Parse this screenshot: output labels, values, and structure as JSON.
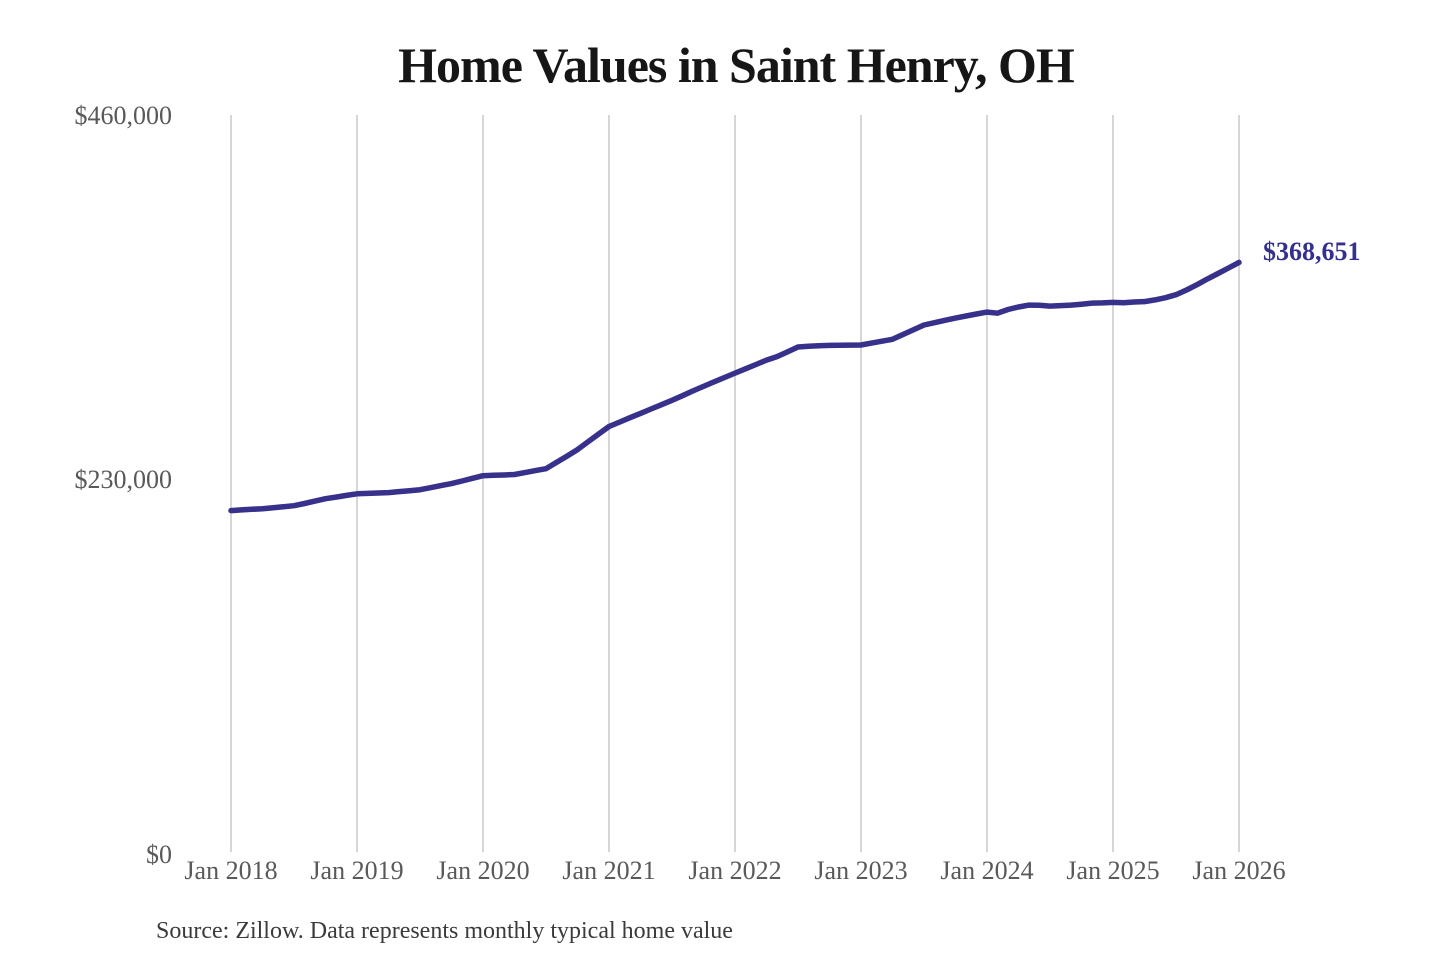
{
  "page": {
    "background": "#ffffff"
  },
  "chart": {
    "title": "Home Values in Saint Henry, OH",
    "end_label": "$368,651",
    "source": "Source: Zillow. Data represents monthly typical home value",
    "colors": {
      "line": "#37318c",
      "end_label": "#34308f",
      "gridline": "#cccccc",
      "tick_text": "#595959",
      "title_text": "#161616",
      "source_text": "#3b3b3b"
    }
  },
  "chart_data": {
    "type": "line",
    "title": "Home Values in Saint Henry, OH",
    "series_name": "Monthly typical home value",
    "source": "Source: Zillow. Data represents monthly typical home value",
    "final_value": 368651,
    "end_label": "$368,651",
    "ylim": [
      0,
      460000
    ],
    "grid": "vertical-only",
    "legend": "none",
    "y_ticks": [
      {
        "label": "$460,000",
        "value": 460000
      },
      {
        "label": "$230,000",
        "value": 230000
      },
      {
        "label": "$0",
        "value": 0
      }
    ],
    "x_tick_labels": [
      "Jan 2018",
      "Jan 2019",
      "Jan 2020",
      "Jan 2021",
      "Jan 2022",
      "Jan 2023",
      "Jan 2024",
      "Jan 2025",
      "Jan 2026"
    ],
    "x": [
      "Jan 2018",
      "Feb 2018",
      "Mar 2018",
      "Apr 2018",
      "May 2018",
      "Jun 2018",
      "Jul 2018",
      "Aug 2018",
      "Sep 2018",
      "Oct 2018",
      "Nov 2018",
      "Dec 2018",
      "Jan 2019",
      "Feb 2019",
      "Mar 2019",
      "Apr 2019",
      "May 2019",
      "Jun 2019",
      "Jul 2019",
      "Aug 2019",
      "Sep 2019",
      "Oct 2019",
      "Nov 2019",
      "Dec 2019",
      "Jan 2020",
      "Feb 2020",
      "Mar 2020",
      "Apr 2020",
      "May 2020",
      "Jun 2020",
      "Jul 2020",
      "Aug 2020",
      "Sep 2020",
      "Oct 2020",
      "Nov 2020",
      "Dec 2020",
      "Jan 2021",
      "Feb 2021",
      "Mar 2021",
      "Apr 2021",
      "May 2021",
      "Jun 2021",
      "Jul 2021",
      "Aug 2021",
      "Sep 2021",
      "Oct 2021",
      "Nov 2021",
      "Dec 2021",
      "Jan 2022",
      "Feb 2022",
      "Mar 2022",
      "Apr 2022",
      "May 2022",
      "Jun 2022",
      "Jul 2022",
      "Aug 2022",
      "Sep 2022",
      "Oct 2022",
      "Nov 2022",
      "Dec 2022",
      "Jan 2023",
      "Feb 2023",
      "Mar 2023",
      "Apr 2023",
      "May 2023",
      "Jun 2023",
      "Jul 2023",
      "Aug 2023",
      "Sep 2023",
      "Oct 2023",
      "Nov 2023",
      "Dec 2023",
      "Jan 2024",
      "Feb 2024",
      "Mar 2024",
      "Apr 2024",
      "May 2024",
      "Jun 2024",
      "Jul 2024",
      "Aug 2024",
      "Sep 2024",
      "Oct 2024",
      "Nov 2024",
      "Dec 2024",
      "Jan 2025",
      "Feb 2025",
      "Mar 2025",
      "Apr 2025",
      "May 2025",
      "Jun 2025",
      "Jul 2025",
      "Aug 2025",
      "Sep 2025",
      "Oct 2025",
      "Nov 2025",
      "Dec 2025",
      "Jan 2026"
    ],
    "values": [
      211600,
      212000,
      212400,
      212800,
      213400,
      214000,
      214700,
      216100,
      217600,
      219100,
      220100,
      221200,
      222200,
      222500,
      222700,
      223000,
      223600,
      224200,
      224800,
      226100,
      227400,
      228700,
      230300,
      232000,
      233700,
      233900,
      234100,
      234400,
      235600,
      236900,
      238100,
      242100,
      246100,
      250200,
      255100,
      260000,
      264800,
      267600,
      270400,
      273100,
      275900,
      278600,
      281400,
      284300,
      287300,
      290200,
      293000,
      295800,
      298600,
      301300,
      304000,
      306800,
      309000,
      312000,
      315100,
      315600,
      315900,
      316100,
      316200,
      316300,
      316400,
      317600,
      318800,
      320000,
      323000,
      326000,
      329000,
      330500,
      332000,
      333400,
      334700,
      336000,
      337200,
      336500,
      338800,
      340400,
      341600,
      341500,
      341000,
      341300,
      341600,
      342200,
      342900,
      343000,
      343300,
      343100,
      343600,
      343800,
      344900,
      346300,
      348200,
      351200,
      354500,
      358200,
      361600,
      365100,
      368651
    ]
  }
}
